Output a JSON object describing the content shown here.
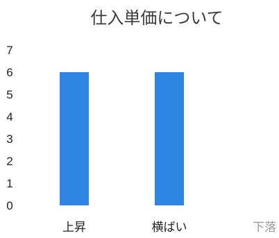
{
  "chart_data": {
    "type": "bar",
    "title": "仕入単価について",
    "categories": [
      "上昇",
      "横ばい",
      "下落"
    ],
    "values": [
      6,
      6,
      0
    ],
    "ylim": [
      0,
      7
    ],
    "y_ticks": [
      "0",
      "1",
      "2",
      "3",
      "4",
      "5",
      "6",
      "7"
    ],
    "grid": false,
    "bar_color": "#2f86e2",
    "muted_category_color": "#9a9a9a"
  }
}
